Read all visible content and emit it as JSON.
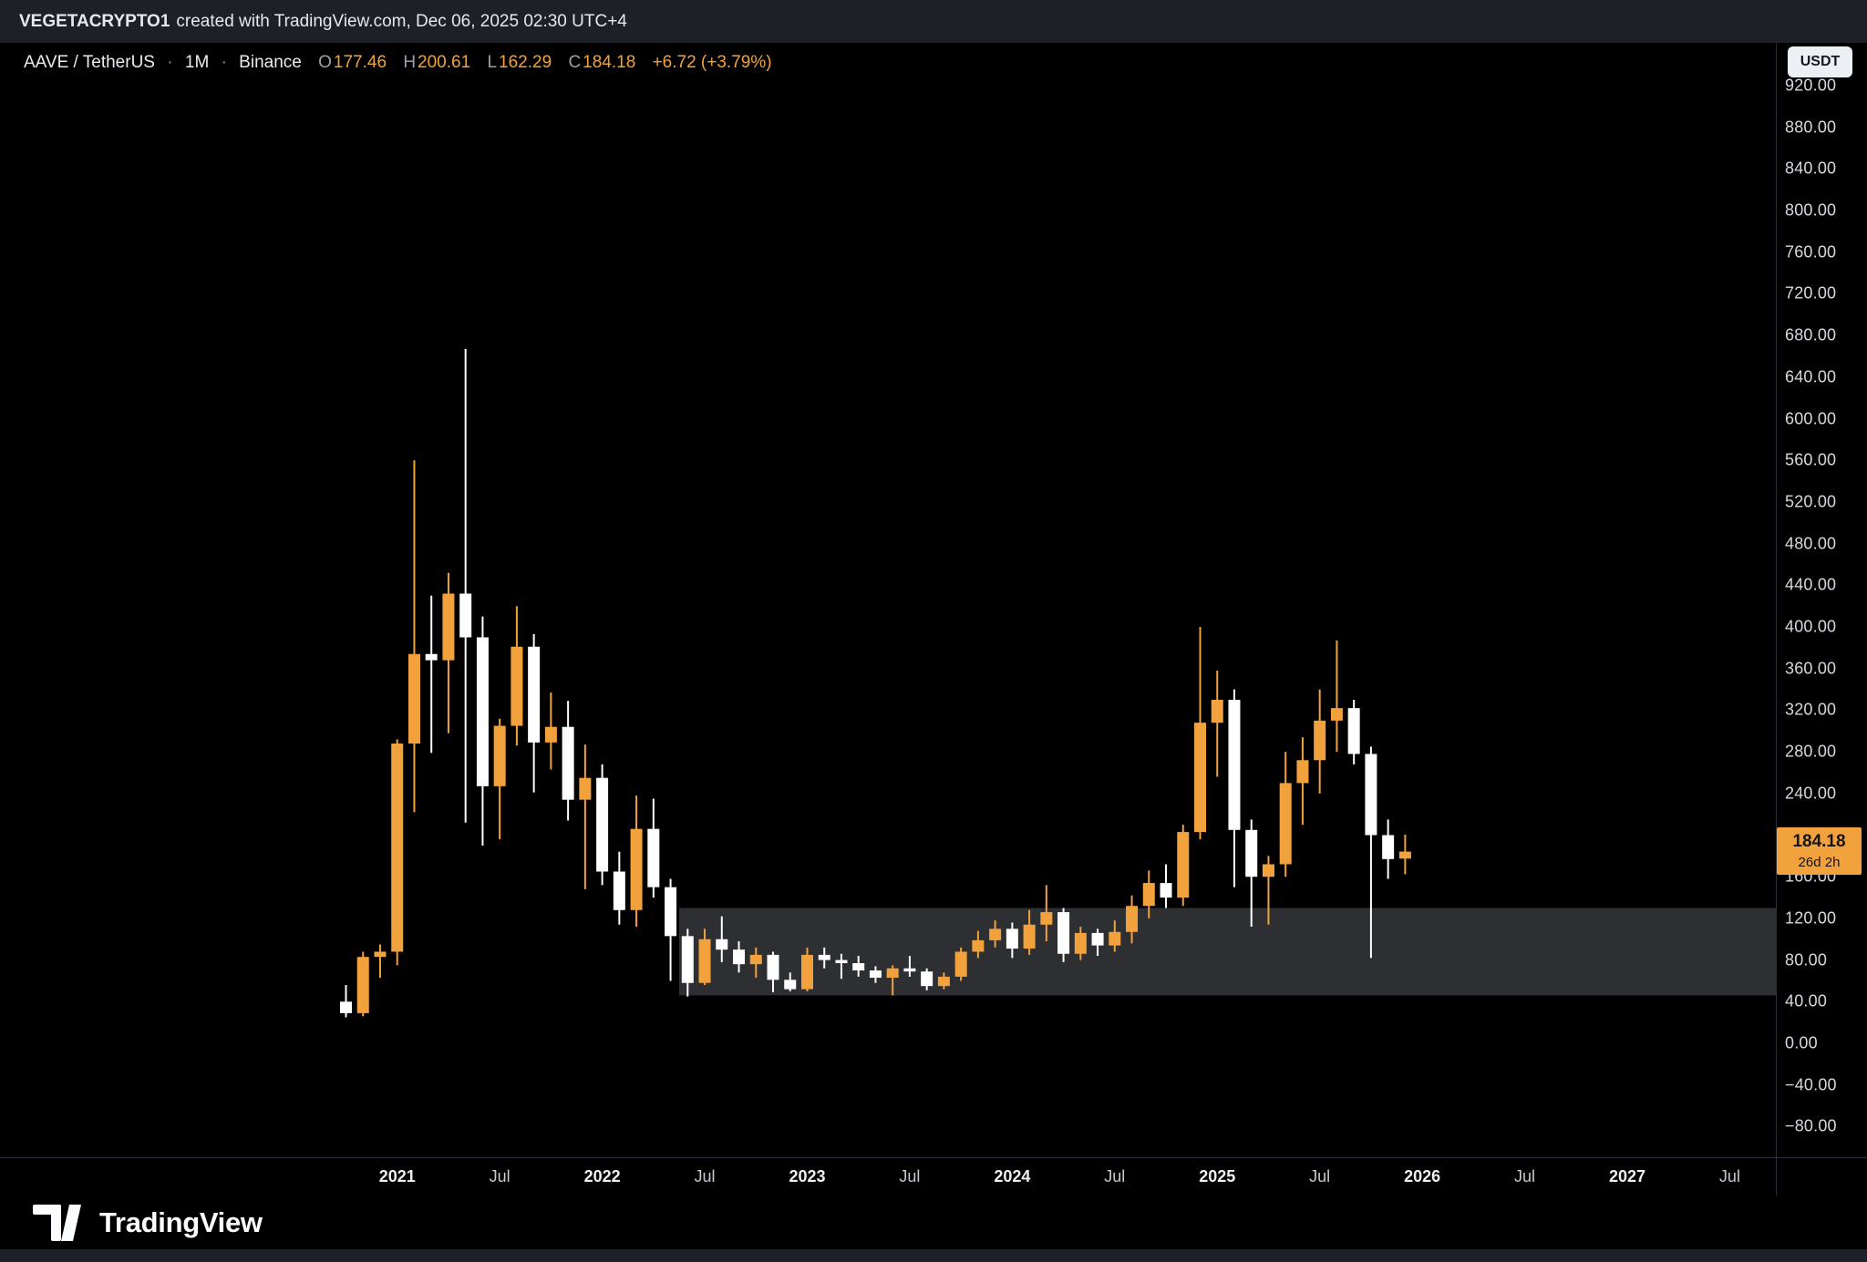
{
  "top_bar": {
    "username": "VEGETACRYPTO1",
    "attribution": "created with TradingView.com, Dec 06, 2025 02:30 UTC+4"
  },
  "header": {
    "symbol": "AAVE / TetherUS",
    "separator": "·",
    "interval": "1M",
    "exchange": "Binance",
    "ohlc": {
      "o_label": "O",
      "o": "177.46",
      "h_label": "H",
      "h": "200.61",
      "l_label": "L",
      "l": "162.29",
      "c_label": "C",
      "c": "184.18",
      "change": "+6.72 (+3.79%)"
    }
  },
  "price_axis": {
    "currency_button": "USDT",
    "ticks": [
      "920.00",
      "880.00",
      "840.00",
      "800.00",
      "760.00",
      "720.00",
      "680.00",
      "640.00",
      "600.00",
      "560.00",
      "520.00",
      "480.00",
      "440.00",
      "400.00",
      "360.00",
      "320.00",
      "280.00",
      "240.00",
      "200.00",
      "160.00",
      "120.00",
      "80.00",
      "40.00",
      "0.00",
      "−40.00",
      "−80.00"
    ],
    "price_label": {
      "price": "184.18",
      "countdown": "26d 2h"
    }
  },
  "time_axis": {
    "labels": [
      {
        "label": "2021",
        "i": 3,
        "major": true
      },
      {
        "label": "Jul",
        "i": 9,
        "major": false
      },
      {
        "label": "2022",
        "i": 15,
        "major": true
      },
      {
        "label": "Jul",
        "i": 21,
        "major": false
      },
      {
        "label": "2023",
        "i": 27,
        "major": true
      },
      {
        "label": "Jul",
        "i": 33,
        "major": false
      },
      {
        "label": "2024",
        "i": 39,
        "major": true
      },
      {
        "label": "Jul",
        "i": 45,
        "major": false
      },
      {
        "label": "2025",
        "i": 51,
        "major": true
      },
      {
        "label": "Jul",
        "i": 57,
        "major": false
      },
      {
        "label": "2026",
        "i": 63,
        "major": true
      },
      {
        "label": "Jul",
        "i": 69,
        "major": false
      },
      {
        "label": "2027",
        "i": 75,
        "major": true
      },
      {
        "label": "Jul",
        "i": 81,
        "major": false
      }
    ]
  },
  "footer": {
    "brand": "TradingView"
  },
  "chart_data": {
    "type": "candlestick",
    "symbol": "AAVE/USDT",
    "exchange": "Binance",
    "interval": "1M",
    "visible_price_range": [
      -109,
      961
    ],
    "candle_columns": [
      "month",
      "open",
      "high",
      "low",
      "close"
    ],
    "candles": [
      [
        "2020-10",
        40,
        56,
        25,
        29
      ],
      [
        "2020-11",
        29,
        88,
        26,
        83
      ],
      [
        "2020-12",
        83,
        95,
        63,
        88
      ],
      [
        "2021-01",
        88,
        292,
        75,
        288
      ],
      [
        "2021-02",
        288,
        560,
        222,
        374
      ],
      [
        "2021-03",
        374,
        430,
        279,
        368
      ],
      [
        "2021-04",
        368,
        452,
        298,
        432
      ],
      [
        "2021-05",
        432,
        667,
        212,
        390
      ],
      [
        "2021-06",
        390,
        410,
        190,
        247
      ],
      [
        "2021-07",
        247,
        312,
        196,
        305
      ],
      [
        "2021-08",
        305,
        420,
        286,
        381
      ],
      [
        "2021-09",
        381,
        393,
        241,
        289
      ],
      [
        "2021-10",
        289,
        337,
        263,
        304
      ],
      [
        "2021-11",
        304,
        329,
        214,
        234
      ],
      [
        "2021-12",
        234,
        287,
        148,
        255
      ],
      [
        "2022-01",
        255,
        268,
        152,
        165
      ],
      [
        "2022-02",
        165,
        184,
        114,
        128
      ],
      [
        "2022-03",
        128,
        238,
        112,
        206
      ],
      [
        "2022-04",
        206,
        235,
        140,
        150
      ],
      [
        "2022-05",
        150,
        158,
        60,
        103
      ],
      [
        "2022-06",
        103,
        110,
        45,
        58
      ],
      [
        "2022-07",
        58,
        110,
        56,
        100
      ],
      [
        "2022-08",
        100,
        122,
        78,
        90
      ],
      [
        "2022-09",
        90,
        98,
        68,
        76
      ],
      [
        "2022-10",
        76,
        92,
        63,
        85
      ],
      [
        "2022-11",
        85,
        88,
        49,
        61
      ],
      [
        "2022-12",
        61,
        68,
        50,
        52
      ],
      [
        "2023-01",
        52,
        92,
        50,
        85
      ],
      [
        "2023-02",
        85,
        92,
        72,
        80
      ],
      [
        "2023-03",
        80,
        86,
        62,
        77
      ],
      [
        "2023-04",
        77,
        84,
        64,
        70
      ],
      [
        "2023-05",
        70,
        74,
        58,
        63
      ],
      [
        "2023-06",
        63,
        75,
        46,
        72
      ],
      [
        "2023-07",
        72,
        84,
        64,
        69
      ],
      [
        "2023-08",
        69,
        72,
        51,
        55
      ],
      [
        "2023-09",
        55,
        68,
        52,
        64
      ],
      [
        "2023-10",
        64,
        92,
        60,
        88
      ],
      [
        "2023-11",
        88,
        108,
        82,
        99
      ],
      [
        "2023-12",
        99,
        118,
        92,
        110
      ],
      [
        "2024-01",
        110,
        116,
        82,
        91
      ],
      [
        "2024-02",
        91,
        128,
        85,
        114
      ],
      [
        "2024-03",
        114,
        152,
        98,
        126
      ],
      [
        "2024-04",
        126,
        130,
        78,
        86
      ],
      [
        "2024-05",
        86,
        112,
        80,
        106
      ],
      [
        "2024-06",
        106,
        110,
        84,
        94
      ],
      [
        "2024-07",
        94,
        118,
        88,
        107
      ],
      [
        "2024-08",
        107,
        142,
        96,
        132
      ],
      [
        "2024-09",
        132,
        166,
        120,
        154
      ],
      [
        "2024-10",
        154,
        172,
        130,
        140
      ],
      [
        "2024-11",
        140,
        210,
        132,
        203
      ],
      [
        "2024-12",
        203,
        400,
        196,
        308
      ],
      [
        "2025-01",
        308,
        358,
        256,
        330
      ],
      [
        "2025-02",
        330,
        340,
        150,
        205
      ],
      [
        "2025-03",
        205,
        215,
        112,
        160
      ],
      [
        "2025-04",
        160,
        180,
        114,
        172
      ],
      [
        "2025-05",
        172,
        280,
        160,
        250
      ],
      [
        "2025-06",
        250,
        294,
        210,
        272
      ],
      [
        "2025-07",
        272,
        340,
        240,
        310
      ],
      [
        "2025-08",
        310,
        387,
        280,
        322
      ],
      [
        "2025-09",
        322,
        330,
        268,
        278
      ],
      [
        "2025-10",
        278,
        285,
        82,
        200
      ],
      [
        "2025-11",
        200,
        215,
        158,
        177
      ],
      [
        "2025-12",
        177.46,
        200.61,
        162.29,
        184.18
      ]
    ],
    "zone": {
      "start_month": "2022-06",
      "price_top": 130,
      "price_bottom": 46,
      "extends_to_right_edge": true
    },
    "colors": {
      "up": "#F2A23C",
      "down": "#FFFFFF",
      "zone_fill": "rgba(168,172,184,0.27)",
      "accent": "#F2A23C",
      "label_bg": "#F2A23C"
    }
  }
}
